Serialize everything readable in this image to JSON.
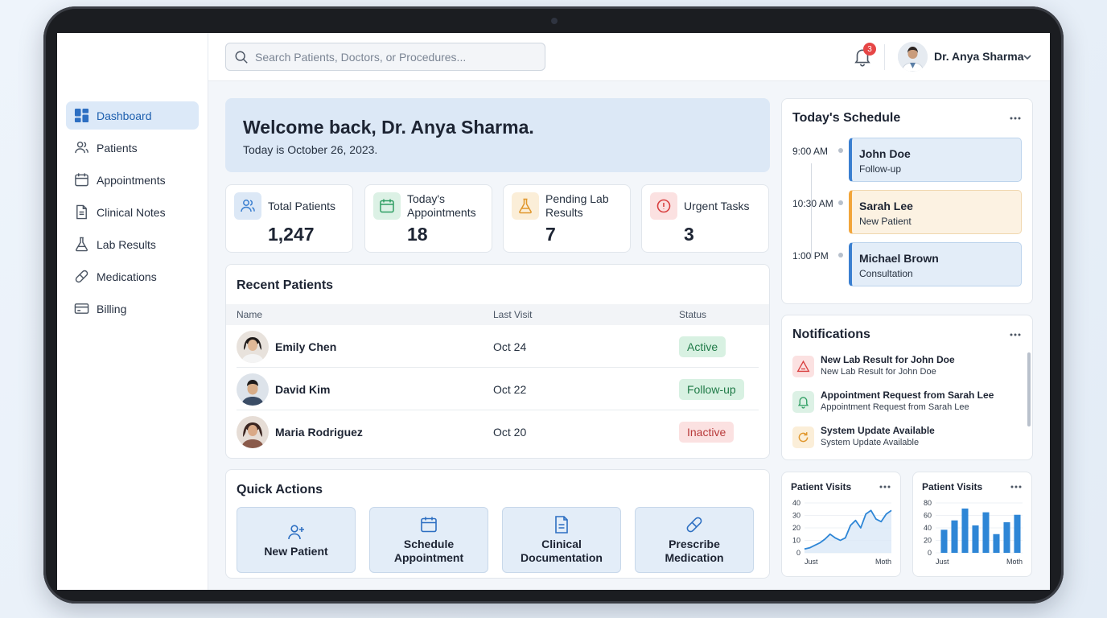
{
  "sidebar": {
    "items": [
      {
        "label": "Dashboard",
        "icon": "dashboard-icon",
        "active": true
      },
      {
        "label": "Patients",
        "icon": "users-icon"
      },
      {
        "label": "Appointments",
        "icon": "calendar-icon"
      },
      {
        "label": "Clinical Notes",
        "icon": "document-icon"
      },
      {
        "label": "Lab Results",
        "icon": "flask-icon"
      },
      {
        "label": "Medications",
        "icon": "pill-icon"
      },
      {
        "label": "Billing",
        "icon": "credit-card-icon"
      }
    ]
  },
  "topbar": {
    "search_placeholder": "Search Patients, Doctors, or Procedures...",
    "notification_count": "3",
    "user_name": "Dr. Anya Sharma"
  },
  "welcome": {
    "title": "Welcome back, Dr. Anya Sharma.",
    "date_text": "Today is October 26, 2023."
  },
  "stats": [
    {
      "label": "Total Patients",
      "value": "1,247",
      "icon": "users-icon",
      "color": "#3a7fd0"
    },
    {
      "label": "Today's Appointments",
      "value": "18",
      "icon": "calendar-icon",
      "color": "#2f9e63"
    },
    {
      "label": "Pending Lab Results",
      "value": "7",
      "icon": "flask-icon",
      "color": "#e0962b"
    },
    {
      "label": "Urgent Tasks",
      "value": "3",
      "icon": "alert-circle-icon",
      "color": "#d94141"
    }
  ],
  "recent_patients": {
    "title": "Recent Patients",
    "columns": [
      "Name",
      "Last Visit",
      "Status"
    ],
    "rows": [
      {
        "name": "Emily Chen",
        "last_visit": "Oct 24",
        "status": "Active"
      },
      {
        "name": "David Kim",
        "last_visit": "Oct 22",
        "status": "Follow-up"
      },
      {
        "name": "Maria Rodriguez",
        "last_visit": "Oct 20",
        "status": "Inactive"
      }
    ]
  },
  "quick_actions": {
    "title": "Quick Actions",
    "items": [
      {
        "label": "New Patient",
        "icon": "user-plus-icon"
      },
      {
        "label": "Schedule Appointment",
        "icon": "calendar-icon"
      },
      {
        "label": "Clinical Documentation",
        "icon": "document-icon"
      },
      {
        "label": "Prescribe Medication",
        "icon": "pill-icon"
      }
    ]
  },
  "schedule": {
    "title": "Today's Schedule",
    "items": [
      {
        "time": "9:00 AM",
        "name": "John Doe",
        "type": "Follow-up"
      },
      {
        "time": "10:30 AM",
        "name": "Sarah Lee",
        "type": "New Patient"
      },
      {
        "time": "1:00 PM",
        "name": "Michael Brown",
        "type": "Consultation"
      }
    ]
  },
  "notifications": {
    "title": "Notifications",
    "items": [
      {
        "title": "New Lab Result for John Doe",
        "subtitle": "New Lab Result for John Doe",
        "icon": "alert-triangle-icon",
        "color": "#d94141"
      },
      {
        "title": "Appointment Request from Sarah Lee",
        "subtitle": "Appointment Request from Sarah Lee",
        "icon": "bell-icon",
        "color": "#2f9e63"
      },
      {
        "title": "System Update Available",
        "subtitle": "System Update Available",
        "icon": "refresh-icon",
        "color": "#e0962b"
      }
    ]
  },
  "chart_data": [
    {
      "type": "area",
      "title": "Patient Visits",
      "x_labels": [
        "Just",
        "Moth"
      ],
      "yticks": [
        0,
        10,
        20,
        30,
        40
      ],
      "ylim": [
        0,
        40
      ],
      "values": [
        3,
        4,
        6,
        8,
        11,
        15,
        12,
        10,
        12,
        22,
        26,
        20,
        31,
        34,
        27,
        25,
        31,
        34
      ]
    },
    {
      "type": "bar",
      "title": "Patient Visits",
      "x_labels": [
        "Just",
        "Moth"
      ],
      "yticks": [
        0,
        20,
        40,
        60,
        80
      ],
      "ylim": [
        0,
        80
      ],
      "values": [
        37,
        52,
        71,
        44,
        65,
        30,
        49,
        61
      ]
    }
  ]
}
